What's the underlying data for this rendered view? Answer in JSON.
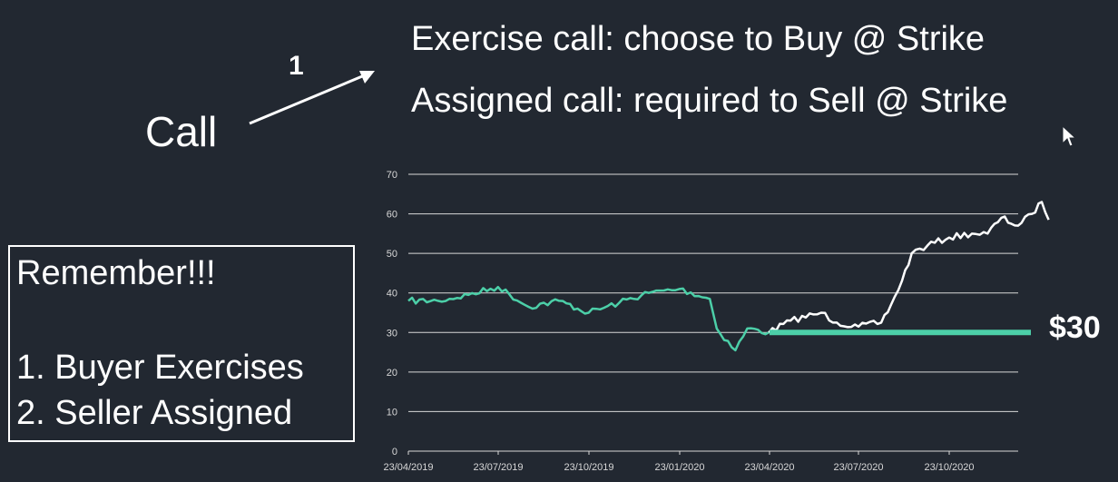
{
  "slide": {
    "call_label": "Call",
    "arrow_number": "1",
    "line1": "Exercise call:  choose to Buy @ Strike",
    "line2": "Assigned call:  required to Sell @ Strike",
    "remember_title": "Remember!!!",
    "remember_items": [
      "1. Buyer Exercises",
      "2. Seller Assigned"
    ],
    "strike_label": "$30"
  },
  "colors": {
    "background": "#222831",
    "teal": "#4ccfa8",
    "white": "#ffffff",
    "grid": "#d8d8d8"
  },
  "chart_data": {
    "type": "line",
    "title": "",
    "xlabel": "",
    "ylabel": "",
    "ylim": [
      0,
      70
    ],
    "yticks": [
      0,
      10,
      20,
      30,
      40,
      50,
      60,
      70
    ],
    "xtick_labels": [
      "23/04/2019",
      "23/07/2019",
      "23/10/2019",
      "23/01/2020",
      "23/04/2020",
      "23/07/2020",
      "23/10/2020"
    ],
    "grid": true,
    "strike": 30,
    "series": [
      {
        "color": "teal",
        "x": [
          "23/04/2019",
          "23/05/2019",
          "23/06/2019",
          "23/07/2019",
          "23/08/2019",
          "23/09/2019",
          "23/10/2019",
          "23/11/2019",
          "23/12/2019",
          "23/01/2020",
          "23/02/2020",
          "01/03/2020",
          "20/03/2020",
          "01/04/2020",
          "23/04/2020"
        ],
        "values": [
          38,
          38,
          39.5,
          41.5,
          36.5,
          38,
          35,
          37.5,
          40,
          41,
          38.5,
          31,
          25.5,
          31,
          30
        ]
      },
      {
        "color": "white",
        "x": [
          "23/04/2020",
          "15/05/2020",
          "15/06/2020",
          "01/07/2020",
          "23/07/2020",
          "15/08/2020",
          "25/08/2020",
          "05/09/2020",
          "15/09/2020",
          "01/10/2020",
          "23/10/2020",
          "15/11/2020",
          "01/12/2020",
          "15/12/2020",
          "01/01/2021",
          "15/01/2021",
          "25/01/2021",
          "01/02/2021"
        ],
        "values": [
          30,
          33,
          35,
          32.5,
          31.5,
          32.5,
          37,
          43,
          50,
          52,
          54,
          55,
          55,
          59,
          57,
          60,
          63,
          58.5
        ]
      }
    ]
  }
}
